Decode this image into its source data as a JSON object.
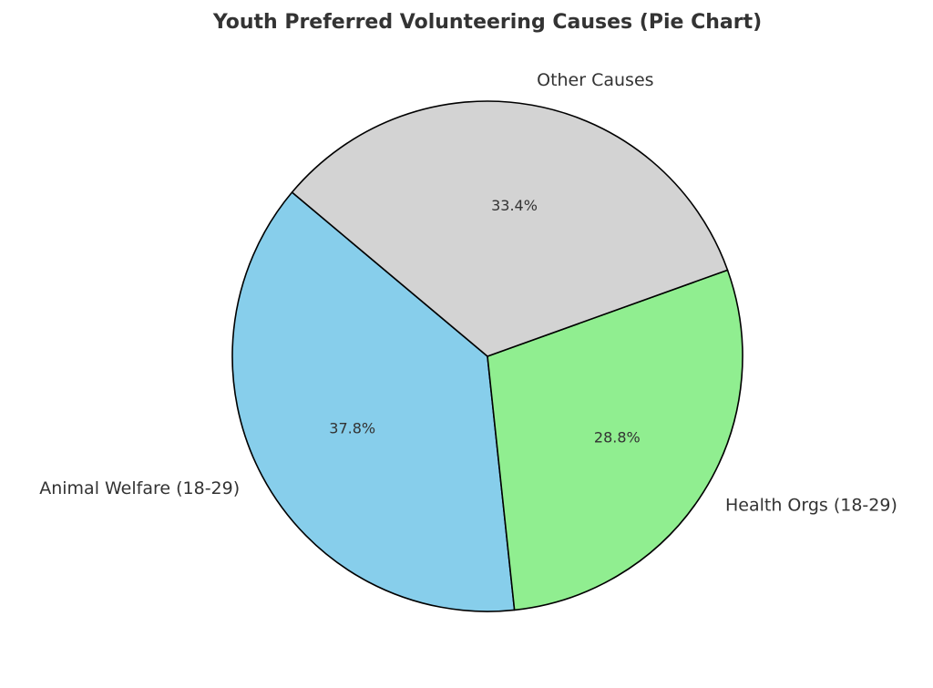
{
  "chart_data": {
    "type": "pie",
    "title": "Youth Preferred Volunteering Causes (Pie Chart)",
    "start_angle_deg": 140,
    "direction": "counterclockwise",
    "slices": [
      {
        "label": "Animal Welfare (18-29)",
        "value": 37.8,
        "pct_label": "37.8%",
        "color": "#87CEEB"
      },
      {
        "label": "Health Orgs (18-29)",
        "value": 28.8,
        "pct_label": "28.8%",
        "color": "#90EE90"
      },
      {
        "label": "Other Causes",
        "value": 33.4,
        "pct_label": "33.4%",
        "color": "#D3D3D3"
      }
    ],
    "edge_color": "#000000"
  }
}
